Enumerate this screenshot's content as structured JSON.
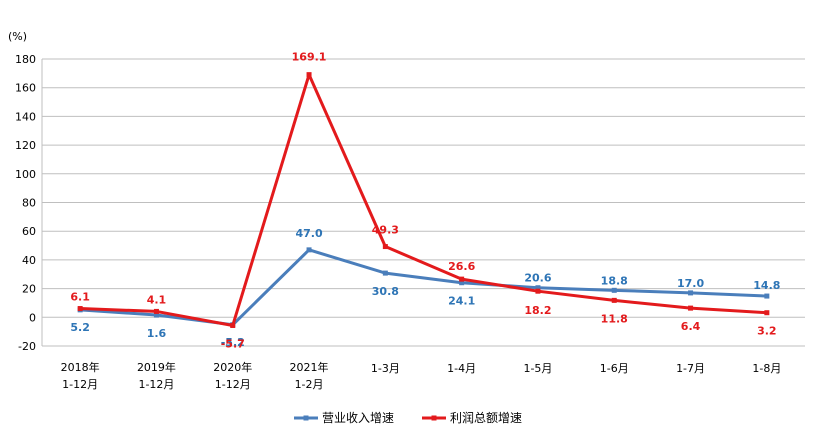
{
  "chart_data": {
    "type": "line",
    "ylabel": "(%)",
    "ylim": [
      -20,
      180
    ],
    "yticks": [
      -20,
      0,
      20,
      40,
      60,
      80,
      100,
      120,
      140,
      160,
      180
    ],
    "grid": true,
    "legend_position": "bottom",
    "categories": [
      [
        "2018年",
        "1-12月"
      ],
      [
        "2019年",
        "1-12月"
      ],
      [
        "2020年",
        "1-12月"
      ],
      [
        "2021年",
        "1-2月"
      ],
      [
        "1-3月"
      ],
      [
        "1-4月"
      ],
      [
        "1-5月"
      ],
      [
        "1-6月"
      ],
      [
        "1-7月"
      ],
      [
        "1-8月"
      ]
    ],
    "series": [
      {
        "name": "营业收入增速",
        "color": "#4a7ebb",
        "values": [
          5.2,
          1.6,
          -5.2,
          47.0,
          30.8,
          24.1,
          20.6,
          18.8,
          17.0,
          14.8
        ],
        "labels": [
          "5.2",
          "1.6",
          "-5.2",
          "47.0",
          "30.8",
          "24.1",
          "20.6",
          "18.8",
          "17.0",
          "14.8"
        ],
        "label_color": "#2e75b6"
      },
      {
        "name": "利润总额增速",
        "color": "#e31a1c",
        "values": [
          6.1,
          4.1,
          -5.7,
          169.1,
          49.3,
          26.6,
          18.2,
          11.8,
          6.4,
          3.2
        ],
        "labels": [
          "6.1",
          "4.1",
          "-5.7",
          "169.1",
          "49.3",
          "26.6",
          "18.2",
          "11.8",
          "6.4",
          "3.2"
        ],
        "label_color": "#e31a1c"
      }
    ]
  }
}
